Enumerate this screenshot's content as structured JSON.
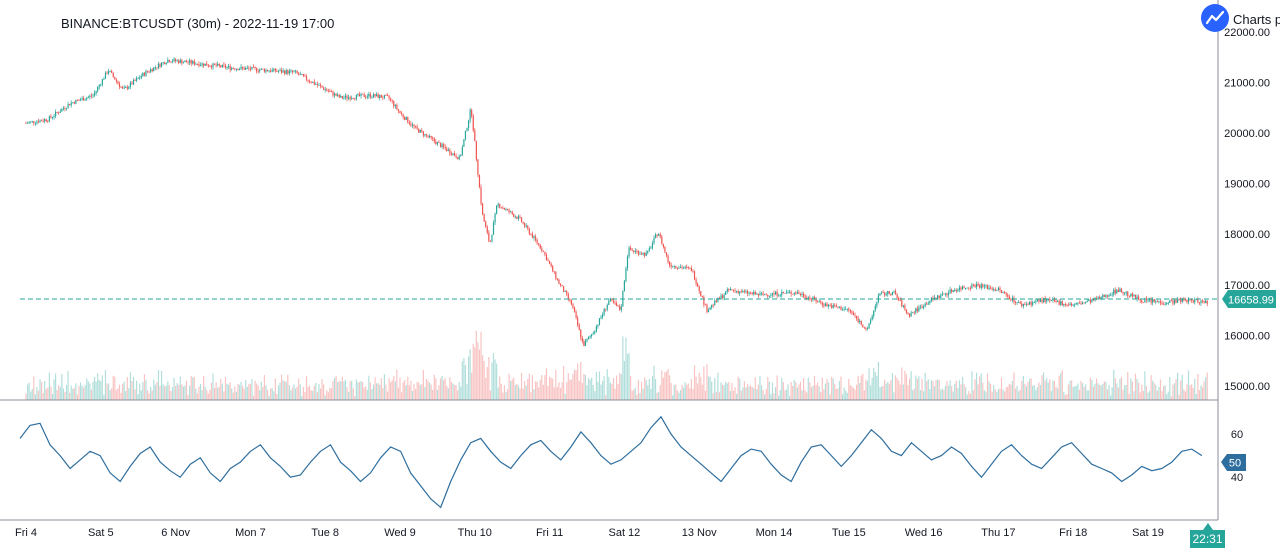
{
  "header": {
    "title": "BINANCE:BTCUSDT (30m) - 2022-11-19 17:00",
    "brand_label": "Charts p",
    "brand_icon": "trend-line-icon"
  },
  "colors": {
    "up": "#26a69a",
    "down": "#ef5350",
    "up_volume": "#b2dfdb",
    "down_volume": "#f8c4c3",
    "rsi_line": "#2e6e9e",
    "last_price": "#26a69a",
    "rsi_badge": "#2e6e9e"
  },
  "chart_data": [
    {
      "type": "candlestick",
      "symbol": "BINANCE:BTCUSDT",
      "interval": "30m",
      "price_ticks": [
        "15000.00",
        "16000.00",
        "17000.00",
        "18000.00",
        "19000.00",
        "20000.00",
        "21000.00",
        "22000.00"
      ],
      "ylim": [
        14720,
        22200
      ],
      "last_price": "16658.99",
      "time_labels": [
        "Fri 4",
        "Sat 5",
        "6 Nov",
        "Mon 7",
        "Tue 8",
        "Wed 9",
        "Thu 10",
        "Fri 11",
        "Sat 12",
        "13 Nov",
        "Mon 14",
        "Tue 15",
        "Wed 16",
        "Thu 17",
        "Fri 18",
        "Sat 19"
      ],
      "current_time": "22:31",
      "close_path": [
        [
          0,
          20200
        ],
        [
          0.3,
          20280
        ],
        [
          0.6,
          20600
        ],
        [
          0.9,
          20750
        ],
        [
          1.1,
          21250
        ],
        [
          1.3,
          20850
        ],
        [
          1.6,
          21200
        ],
        [
          1.9,
          21450
        ],
        [
          2.3,
          21380
        ],
        [
          2.7,
          21300
        ],
        [
          3.2,
          21250
        ],
        [
          3.6,
          21200
        ],
        [
          3.9,
          20950
        ],
        [
          4.2,
          20700
        ],
        [
          4.6,
          20750
        ],
        [
          4.85,
          20700
        ],
        [
          5.0,
          20400
        ],
        [
          5.2,
          20100
        ],
        [
          5.5,
          19800
        ],
        [
          5.8,
          19500
        ],
        [
          5.95,
          20500
        ],
        [
          6.1,
          18400
        ],
        [
          6.2,
          17800
        ],
        [
          6.3,
          18600
        ],
        [
          6.6,
          18300
        ],
        [
          6.9,
          17700
        ],
        [
          7.1,
          17100
        ],
        [
          7.3,
          16600
        ],
        [
          7.45,
          15800
        ],
        [
          7.6,
          16100
        ],
        [
          7.8,
          16700
        ],
        [
          7.95,
          16500
        ],
        [
          8.05,
          17700
        ],
        [
          8.3,
          17600
        ],
        [
          8.45,
          18050
        ],
        [
          8.6,
          17400
        ],
        [
          8.9,
          17300
        ],
        [
          9.1,
          16500
        ],
        [
          9.4,
          16900
        ],
        [
          9.8,
          16800
        ],
        [
          10.3,
          16850
        ],
        [
          10.7,
          16600
        ],
        [
          11.0,
          16500
        ],
        [
          11.25,
          16100
        ],
        [
          11.4,
          16800
        ],
        [
          11.6,
          16850
        ],
        [
          11.8,
          16400
        ],
        [
          12.1,
          16700
        ],
        [
          12.4,
          16900
        ],
        [
          12.7,
          17000
        ],
        [
          13.0,
          16900
        ],
        [
          13.3,
          16600
        ],
        [
          13.6,
          16700
        ],
        [
          14.0,
          16600
        ],
        [
          14.3,
          16700
        ],
        [
          14.6,
          16900
        ],
        [
          14.9,
          16700
        ],
        [
          15.2,
          16650
        ],
        [
          15.5,
          16700
        ],
        [
          15.8,
          16659
        ]
      ]
    },
    {
      "type": "line",
      "indicator": "RSI",
      "levels": [
        "60",
        "40"
      ],
      "current": "50",
      "ylim": [
        22,
        73
      ],
      "values": [
        58,
        64,
        65,
        55,
        50,
        44,
        48,
        52,
        50,
        42,
        38,
        45,
        51,
        54,
        47,
        43,
        40,
        46,
        49,
        42,
        38,
        44,
        47,
        52,
        55,
        49,
        45,
        40,
        41,
        47,
        52,
        55,
        47,
        43,
        38,
        42,
        49,
        54,
        52,
        42,
        36,
        30,
        26,
        38,
        48,
        56,
        58,
        52,
        47,
        44,
        50,
        55,
        57,
        52,
        48,
        54,
        61,
        56,
        50,
        46,
        48,
        52,
        56,
        63,
        68,
        60,
        54,
        50,
        46,
        42,
        38,
        44,
        50,
        53,
        52,
        46,
        41,
        38,
        47,
        54,
        55,
        50,
        45,
        50,
        56,
        62,
        58,
        52,
        50,
        56,
        52,
        48,
        50,
        54,
        51,
        45,
        40,
        46,
        52,
        55,
        50,
        46,
        44,
        49,
        54,
        56,
        51,
        46,
        44,
        42,
        38,
        41,
        45,
        43,
        44,
        47,
        52,
        53,
        50
      ]
    }
  ]
}
